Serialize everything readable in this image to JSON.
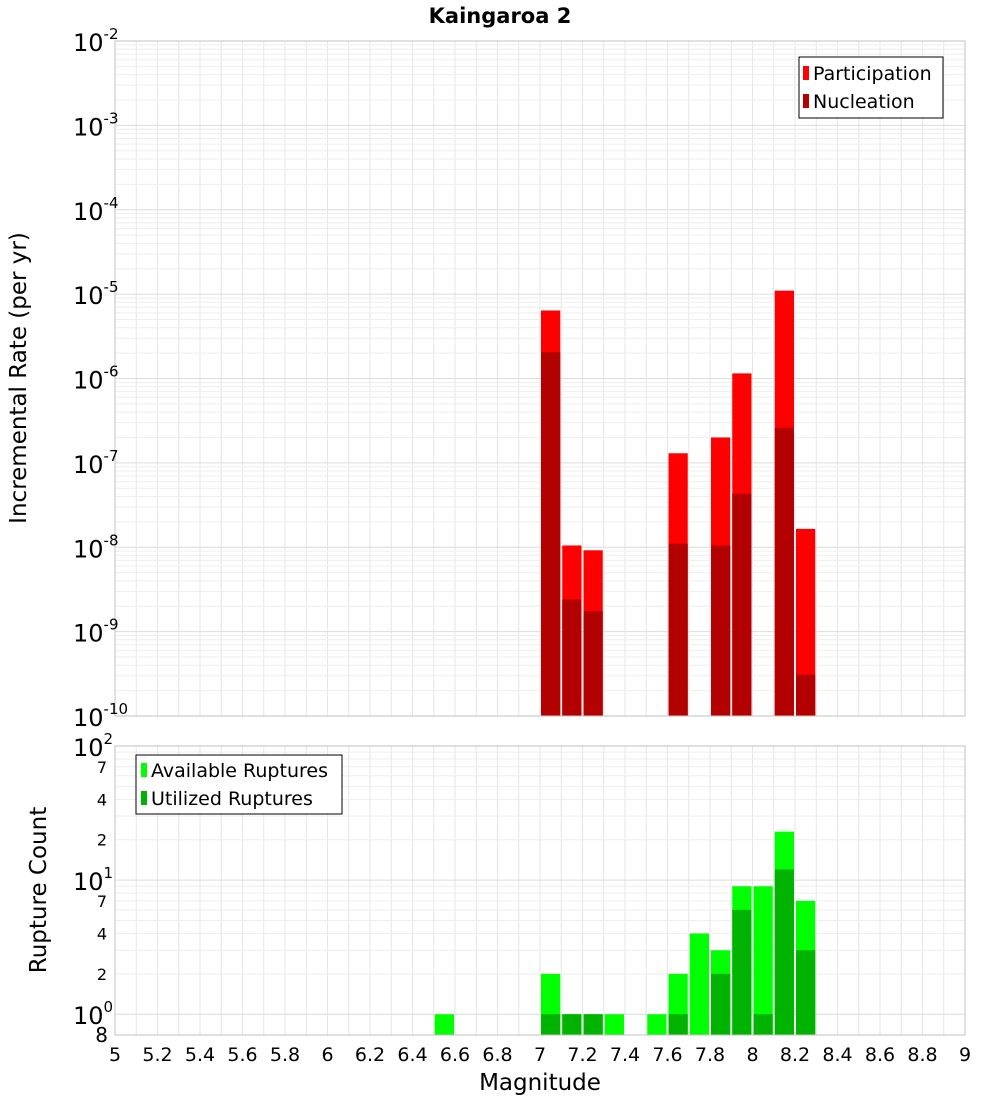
{
  "title": "Kaingaroa 2",
  "colors": {
    "participation": "#ff0000",
    "nucleation": "#b30000",
    "available": "#00ff00",
    "utilized": "#00b300",
    "grid": "#e6e6e6",
    "frame": "#c0c0c0"
  },
  "chart_data": [
    {
      "type": "bar",
      "title": "Kaingaroa 2",
      "ylabel": "Incremental Rate (per yr)",
      "xlabel": "",
      "yscale": "log",
      "xlim": [
        5,
        9
      ],
      "ylim_exp": [
        -10,
        -2
      ],
      "y_tick_base": "10",
      "y_tick_exponents": [
        "-2",
        "-3",
        "-4",
        "-5",
        "-6",
        "-7",
        "-8",
        "-9",
        "-10"
      ],
      "bar_width": 0.1,
      "legend": {
        "position": "top-right",
        "entries": [
          "Participation",
          "Nucleation"
        ]
      },
      "series": [
        {
          "name": "Participation",
          "x": [
            7.05,
            7.15,
            7.25,
            7.65,
            7.85,
            7.95,
            8.15,
            8.25
          ],
          "values": [
            6.4e-06,
            1.05e-08,
            9.2e-09,
            1.3e-07,
            2e-07,
            1.15e-06,
            1.1e-05,
            1.65e-08
          ]
        },
        {
          "name": "Nucleation",
          "x": [
            7.05,
            7.15,
            7.25,
            7.65,
            7.85,
            7.95,
            8.15,
            8.25
          ],
          "values": [
            2.05e-06,
            2.4e-09,
            1.75e-09,
            1.1e-08,
            1.05e-08,
            4.3e-08,
            2.6e-07,
            3.1e-10
          ]
        }
      ]
    },
    {
      "type": "bar",
      "ylabel": "Rupture Count",
      "xlabel": "Magnitude",
      "yscale": "log",
      "xlim": [
        5,
        9
      ],
      "ylim": [
        0.7,
        100
      ],
      "x_ticks": [
        "5",
        "5.2",
        "5.4",
        "5.6",
        "5.8",
        "6",
        "6.2",
        "6.4",
        "6.6",
        "6.8",
        "7",
        "7.2",
        "7.4",
        "7.6",
        "7.8",
        "8",
        "8.2",
        "8.4",
        "8.6",
        "8.8",
        "9"
      ],
      "y_major_ticks": [
        {
          "value": 100,
          "base": "10",
          "exp": "2"
        },
        {
          "value": 10,
          "base": "10",
          "exp": "1"
        },
        {
          "value": 1,
          "base": "10",
          "exp": "0"
        }
      ],
      "y_minor_ticks": [
        {
          "value": 70,
          "label": "7"
        },
        {
          "value": 40,
          "label": "4"
        },
        {
          "value": 20,
          "label": "2"
        },
        {
          "value": 7,
          "label": "7"
        },
        {
          "value": 4,
          "label": "4"
        },
        {
          "value": 2,
          "label": "2"
        }
      ],
      "bottom_tick_label": "8",
      "bar_width": 0.1,
      "legend": {
        "position": "top-left",
        "entries": [
          "Available Ruptures",
          "Utilized Ruptures"
        ]
      },
      "series": [
        {
          "name": "Available Ruptures",
          "x": [
            6.55,
            7.05,
            7.15,
            7.25,
            7.35,
            7.55,
            7.65,
            7.75,
            7.85,
            7.95,
            8.05,
            8.15,
            8.25
          ],
          "values": [
            1,
            2,
            1,
            1,
            1,
            1,
            2,
            4,
            3,
            9,
            9,
            23,
            7
          ]
        },
        {
          "name": "Utilized Ruptures",
          "x": [
            7.05,
            7.15,
            7.25,
            7.65,
            7.85,
            7.95,
            8.05,
            8.15,
            8.25
          ],
          "values": [
            1,
            1,
            1,
            1,
            2,
            6,
            1,
            12,
            3
          ]
        }
      ]
    }
  ]
}
